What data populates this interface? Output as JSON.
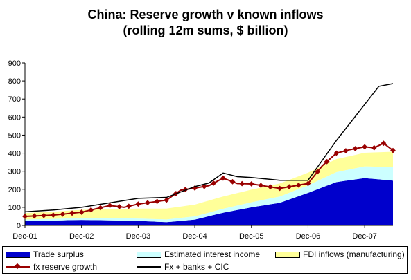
{
  "chart_data": {
    "type": "area",
    "title": "China: Reserve growth v known inflows",
    "subtitle": "(rolling 12m sums, $ billion)",
    "xlabel": "",
    "ylabel": "",
    "ylim": [
      0,
      900
    ],
    "yticks": [
      "0",
      "100",
      "200",
      "300",
      "400",
      "500",
      "600",
      "700",
      "800",
      "900"
    ],
    "x_tick_labels": [
      "Dec-01",
      "Dec-02",
      "Dec-03",
      "Dec-04",
      "Dec-05",
      "Dec-06",
      "Dec-07"
    ],
    "x_range": [
      "Dec-01",
      "Jun-08"
    ],
    "grid": false,
    "legend_position": "bottom",
    "series": [
      {
        "name": "Trade surplus",
        "kind": "stacked-area",
        "color": "#0000CC",
        "points": [
          [
            "Dec-01",
            25
          ],
          [
            "Jun-02",
            27
          ],
          [
            "Dec-02",
            30
          ],
          [
            "Jun-03",
            28
          ],
          [
            "Dec-03",
            25
          ],
          [
            "Jun-04",
            18
          ],
          [
            "Dec-04",
            32
          ],
          [
            "Jun-05",
            70
          ],
          [
            "Dec-05",
            100
          ],
          [
            "Jun-06",
            125
          ],
          [
            "Dec-06",
            180
          ],
          [
            "Jun-07",
            240
          ],
          [
            "Dec-07",
            262
          ],
          [
            "Jun-08",
            248
          ]
        ]
      },
      {
        "name": "Estimated interest income",
        "kind": "stacked-area",
        "color": "#CCFFFF",
        "points": [
          [
            "Dec-01",
            8
          ],
          [
            "Jun-02",
            9
          ],
          [
            "Dec-02",
            11
          ],
          [
            "Jun-03",
            12
          ],
          [
            "Dec-03",
            13
          ],
          [
            "Jun-04",
            15
          ],
          [
            "Dec-04",
            18
          ],
          [
            "Jun-05",
            22
          ],
          [
            "Dec-05",
            28
          ],
          [
            "Jun-06",
            35
          ],
          [
            "Dec-06",
            42
          ],
          [
            "Jun-07",
            55
          ],
          [
            "Dec-07",
            65
          ],
          [
            "Jun-08",
            75
          ]
        ]
      },
      {
        "name": "FDI inflows (manufacturing)",
        "kind": "stacked-area",
        "color": "#FFFF99",
        "points": [
          [
            "Dec-01",
            35
          ],
          [
            "Jun-02",
            40
          ],
          [
            "Dec-02",
            45
          ],
          [
            "Jun-03",
            50
          ],
          [
            "Dec-03",
            55
          ],
          [
            "Jun-04",
            60
          ],
          [
            "Dec-04",
            65
          ],
          [
            "Jun-05",
            68
          ],
          [
            "Dec-05",
            70
          ],
          [
            "Jun-06",
            72
          ],
          [
            "Dec-06",
            70
          ],
          [
            "Jun-07",
            72
          ],
          [
            "Dec-07",
            75
          ],
          [
            "Jun-08",
            85
          ]
        ]
      },
      {
        "name": "fx reserve growth",
        "kind": "line-marker",
        "color": "#990000",
        "points": [
          [
            "Dec-01",
            50
          ],
          [
            "Jun-02",
            57
          ],
          [
            "Dec-02",
            73
          ],
          [
            "Jun-03",
            110
          ],
          [
            "Sep-03",
            100
          ],
          [
            "Dec-03",
            118
          ],
          [
            "Jun-04",
            140
          ],
          [
            "Sep-04",
            195
          ],
          [
            "Dec-04",
            207
          ],
          [
            "Mar-05",
            220
          ],
          [
            "Jun-05",
            262
          ],
          [
            "Sep-05",
            232
          ],
          [
            "Dec-05",
            230
          ],
          [
            "Jun-06",
            205
          ],
          [
            "Dec-06",
            232
          ],
          [
            "Mar-07",
            330
          ],
          [
            "Jun-07",
            400
          ],
          [
            "Sep-07",
            420
          ],
          [
            "Dec-07",
            435
          ],
          [
            "Feb-08",
            430
          ],
          [
            "Apr-08",
            455
          ],
          [
            "Jun-08",
            415
          ]
        ]
      },
      {
        "name": "Fx + banks + CIC",
        "kind": "line",
        "color": "#000000",
        "points": [
          [
            "Dec-01",
            75
          ],
          [
            "Jun-02",
            85
          ],
          [
            "Dec-02",
            100
          ],
          [
            "Jun-03",
            125
          ],
          [
            "Dec-03",
            150
          ],
          [
            "Jun-04",
            155
          ],
          [
            "Dec-04",
            215
          ],
          [
            "Mar-05",
            235
          ],
          [
            "Jun-05",
            290
          ],
          [
            "Sep-05",
            270
          ],
          [
            "Dec-05",
            265
          ],
          [
            "Jun-06",
            250
          ],
          [
            "Dec-06",
            250
          ],
          [
            "Mar-07",
            360
          ],
          [
            "Jun-07",
            470
          ],
          [
            "Sep-07",
            570
          ],
          [
            "Dec-07",
            670
          ],
          [
            "Mar-08",
            770
          ],
          [
            "Jun-08",
            785
          ]
        ]
      }
    ]
  }
}
